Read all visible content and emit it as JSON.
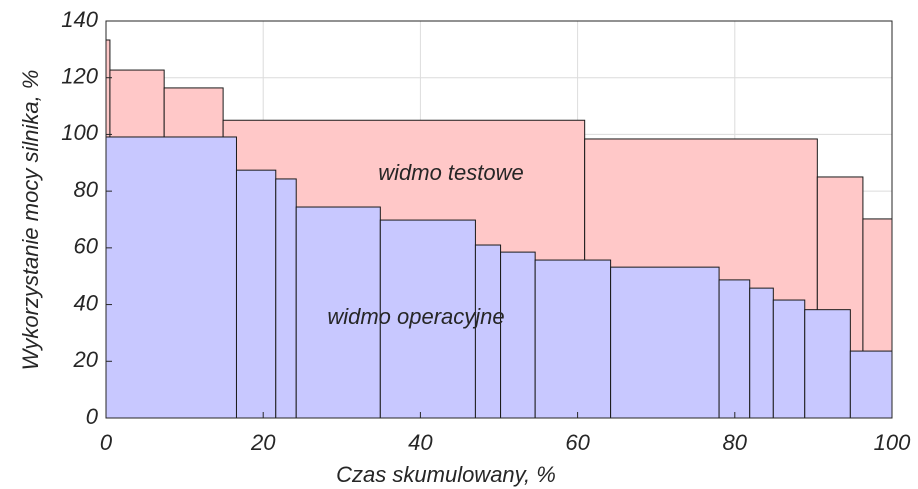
{
  "chart_data": {
    "type": "histogram",
    "xlabel": "Czas skumulowany, %",
    "ylabel": "Wykorzystanie mocy silnika, %",
    "xlim": [
      0,
      100
    ],
    "xticks": [
      0,
      20,
      40,
      60,
      80,
      100
    ],
    "ylim": [
      0,
      140
    ],
    "yticks": [
      0,
      20,
      40,
      60,
      80,
      100,
      120,
      140
    ],
    "grid": true,
    "series": [
      {
        "name": "widmo testowe",
        "color": "#ffc8c8",
        "bins": [
          0,
          0.5,
          7.4,
          14.9,
          60.9,
          90.5,
          96.3,
          100
        ],
        "values": [
          133.3,
          122.7,
          116.4,
          105,
          98.4,
          85,
          70.2
        ]
      },
      {
        "name": "widmo operacyjne",
        "color": "#c8c8ff",
        "bins": [
          0,
          16.6,
          21.6,
          24.2,
          34.9,
          47.0,
          50.2,
          54.6,
          64.2,
          78.0,
          81.9,
          84.9,
          88.9,
          94.7,
          100
        ],
        "values": [
          99.1,
          87.4,
          84.3,
          74.4,
          69.8,
          61,
          58.5,
          55.7,
          53.2,
          48.7,
          45.8,
          41.6,
          38.2,
          23.6
        ]
      }
    ]
  }
}
